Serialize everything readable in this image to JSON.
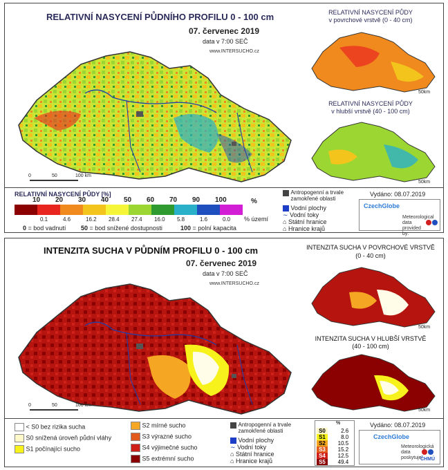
{
  "panel1": {
    "title": "RELATIVNÍ NASYCENÍ PŮDNÍHO PROFILU 0 - 100 cm",
    "date": "07. červenec 2019",
    "time": "data v 7:00 SEČ",
    "website": "www.INTERSUCHO.cz",
    "mini1_title_l1": "RELATIVNÍ NASYCENÍ PŮDY",
    "mini1_title_l2": "v povrchové vrstvě (0 - 40 cm)",
    "mini2_title_l1": "RELATIVNÍ NASYCENÍ PŮDY",
    "mini2_title_l2": "v hlubší vrstvě (40 - 100 cm)",
    "scale_main": [
      "0",
      "50",
      "100 km"
    ],
    "scale_mini": [
      "0",
      "50km"
    ],
    "legend_title": "RELATIVNÍ NASYCENÍ PŮDY [%]",
    "legend_top_labels": [
      "10",
      "20",
      "30",
      "40",
      "50",
      "60",
      "70",
      "90",
      "100"
    ],
    "legend_unit": "%",
    "legend_bottom_values": [
      "0.1",
      "4.6",
      "16.2",
      "28.4",
      "27.4",
      "16.0",
      "5.8",
      "1.6",
      "0.0"
    ],
    "legend_area": "% území",
    "legend_colors": [
      "#8b0000",
      "#e8261f",
      "#f08a1e",
      "#f3c51c",
      "#f5f53a",
      "#9bd633",
      "#2f9a2f",
      "#2ab0c8",
      "#1f4fbf",
      "#d21fd6"
    ],
    "note_0": "= bod vadnutí",
    "note_0_key": "0",
    "note_50": "= bod snížené dostupnosti",
    "note_50_key": "50",
    "note_100": "= polní kapacita",
    "note_100_key": "100",
    "legend_right": [
      "Antropogenní a trvale zamokřené oblasti",
      "Vodní plochy",
      "Vodní toky",
      "Státní hranice",
      "Hranice krajů"
    ],
    "issued": "Vydáno: 08.07.2019",
    "logo_text": "CzechGlobe",
    "partner_text": "Meteorological data provided by:"
  },
  "panel2": {
    "title": "INTENZITA SUCHA V PŮDNÍM PROFILU 0 - 100 cm",
    "date": "07. červenec 2019",
    "time": "data v 7:00 SEČ",
    "website": "www.INTERSUCHO.cz",
    "mini1_title_l1": "INTENZITA SUCHA V POVRCHOVÉ VRSTVĚ",
    "mini1_title_l2": "(0 - 40 cm)",
    "mini2_title_l1": "INTENZITA SUCHA V HLUBŠÍ VRSTVĚ",
    "mini2_title_l2": "(40 - 100 cm)",
    "scale_main": [
      "0",
      "50",
      "100 km"
    ],
    "scale_mini": [
      "0",
      "50km"
    ],
    "legend_left": [
      {
        "label": "< S0 bez rizika sucha",
        "color": "#ffffff"
      },
      {
        "label": "S0 snížená úroveň půdní vláhy",
        "color": "#fff8c8"
      },
      {
        "label": "S1 počínající sucho",
        "color": "#f7f21c"
      }
    ],
    "legend_mid": [
      {
        "label": "S2 mírné sucho",
        "color": "#f5a623"
      },
      {
        "label": "S3 výrazné sucho",
        "color": "#e25a1c"
      },
      {
        "label": "S4 výjimečné sucho",
        "color": "#d0201a"
      },
      {
        "label": "S5 extrémní sucho",
        "color": "#8b0000"
      }
    ],
    "legend_right": [
      "Antropogenní a trvale zamokřené oblasti",
      "Vodní plochy",
      "Vodní toky",
      "Státní hranice",
      "Hranice krajů"
    ],
    "pct_header": "%",
    "pct_table": [
      {
        "cls": "S0",
        "value": "2.6",
        "color": "#fff8c8"
      },
      {
        "cls": "S1",
        "value": "8.0",
        "color": "#f7f21c"
      },
      {
        "cls": "S2",
        "value": "10.5",
        "color": "#f5a623"
      },
      {
        "cls": "S3",
        "value": "15.2",
        "color": "#e25a1c"
      },
      {
        "cls": "S4",
        "value": "12.5",
        "color": "#d0201a"
      },
      {
        "cls": "S5",
        "value": "49.4",
        "color": "#8b0000"
      }
    ],
    "issued": "Vydáno: 08.07.2019",
    "logo_text": "CzechGlobe",
    "partner_text": "Meteorologická data poskytuje:",
    "partner_name": "ČHMÚ"
  }
}
